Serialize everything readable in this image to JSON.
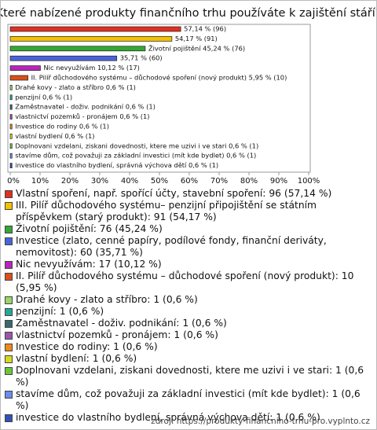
{
  "chart_data": {
    "type": "hbar",
    "title": "Které nabízené produkty finančního trhu používáte k zajištění stáří?",
    "values": [
      57.14,
      54.17,
      45.24,
      35.71,
      10.12,
      5.95,
      0.6,
      0.6,
      0.6,
      0.6,
      0.6,
      0.6,
      0.6,
      0.6,
      0.6
    ],
    "value_labels": [
      "57,14 % (96)",
      "54,17 % (91)",
      "Životní pojištění 45,24 % (76)",
      "35,71 % (60)",
      "Nic nevyužívám 10,12 % (17)",
      "II. Pilíř důchodového systému – důchodové spoření (nový produkt) 5,95 % (10)",
      "Drahé kovy - zlato a stříbro 0,6 % (1)",
      "penzijní 0,6 % (1)",
      "Zaměstnavatel - doživ. podnikání 0,6 % (1)",
      "vlastnictví pozemků - pronájem 0,6 % (1)",
      "Investice do rodiny 0,6 % (1)",
      "vlastní bydlení 0,6 % (1)",
      "Doplnovani vzdelani, ziskani dovednosti, ktere me uzivi i ve stari 0,6 % (1)",
      "stavíme dům, což považuji za základní investici (mít kde bydlet) 0,6 % (1)",
      "investice do vlastního bydlení, správná výchova dětí 0,6 % (1)"
    ],
    "legend": [
      "Vlastní spoření, např. spořící účty, stavební spoření: 96 (57,14 %)",
      "III. Pilíř důchodového systému– penzijní připojištění se státním příspěvkem (starý produkt): 91 (54,17 %)",
      "Životní pojištění: 76 (45,24 %)",
      "Investice (zlato, cenné papíry, podílové fondy, finanční deriváty, nemovitost): 60 (35,71 %)",
      "Nic nevyužívám: 17 (10,12 %)",
      "II. Pilíř důchodového systému – důchodové spoření (nový produkt): 10 (5,95 %)",
      "Drahé kovy - zlato a stříbro: 1 (0,6 %)",
      "penzijní: 1 (0,6 %)",
      "Zaměstnavatel - doživ. podnikání: 1 (0,6 %)",
      "vlastnictví pozemků - pronájem: 1 (0,6 %)",
      "Investice do rodiny: 1 (0,6 %)",
      "vlastní bydlení: 1 (0,6 %)",
      "Doplnovani vzdelani, ziskani dovednosti, ktere me uzivi i ve stari: 1 (0,6 %)",
      "stavíme dům, což považuji za základní investici (mít kde bydlet): 1 (0,6 %)",
      "investice do vlastního bydlení, správná výchova dětí: 1 (0,6 %)"
    ],
    "colors": [
      "#e0301e",
      "#f2c100",
      "#34a834",
      "#4a63d8",
      "#b726b7",
      "#d9501a",
      "#9ad66a",
      "#26a898",
      "#3a6b6b",
      "#9a56ad",
      "#ec8b17",
      "#d8d822",
      "#6cc63a",
      "#6d8cec",
      "#3551b5"
    ],
    "xlim": [
      0,
      100
    ],
    "xticks": [
      {
        "value": 0,
        "label": "0%"
      },
      {
        "value": 10,
        "label": "10%"
      },
      {
        "value": 20,
        "label": "20%"
      },
      {
        "value": 30,
        "label": "30%"
      },
      {
        "value": 40,
        "label": "40%"
      },
      {
        "value": 50,
        "label": "50%"
      },
      {
        "value": 60,
        "label": "60%"
      },
      {
        "value": 70,
        "label": "70%"
      },
      {
        "value": 80,
        "label": "80%"
      },
      {
        "value": 90,
        "label": "90%"
      },
      {
        "value": 100,
        "label": "100%"
      }
    ],
    "source": "zdroj: https://produkty-financniho-trhu-pro.vyplnto.cz"
  }
}
